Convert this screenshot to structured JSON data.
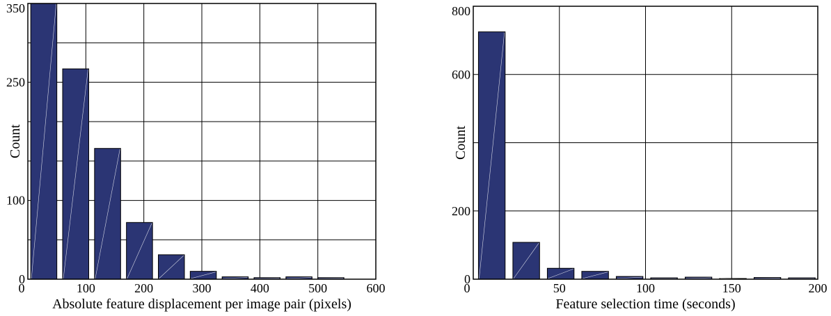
{
  "chart_data": [
    {
      "type": "bar",
      "title": "",
      "xlabel": "Absolute feature displacement per image pair (pixels)",
      "ylabel": "Count",
      "xlim": [
        0,
        600
      ],
      "ylim": [
        0,
        350
      ],
      "x_ticks": [
        {
          "value": 0,
          "label": "0"
        },
        {
          "value": 100,
          "label": "100"
        },
        {
          "value": 200,
          "label": "200"
        },
        {
          "value": 300,
          "label": "300"
        },
        {
          "value": 400,
          "label": "400"
        },
        {
          "value": 500,
          "label": "500"
        },
        {
          "value": 600,
          "label": "600"
        }
      ],
      "y_ticks": [
        {
          "value": 0,
          "label": "0"
        },
        {
          "value": 100,
          "label": "100"
        },
        {
          "value": 250,
          "label": "250"
        },
        {
          "value": 350,
          "label": "350"
        }
      ],
      "x_gridlines": [
        100,
        200,
        300,
        400,
        500
      ],
      "y_gridlines": [
        50,
        100,
        150,
        200,
        250,
        300
      ],
      "grid": true,
      "bar_color": "#2b3574",
      "bars": [
        {
          "x0": 5,
          "x1": 50,
          "value": 350
        },
        {
          "x0": 60,
          "x1": 105,
          "value": 267
        },
        {
          "x0": 115,
          "x1": 160,
          "value": 166
        },
        {
          "x0": 170,
          "x1": 215,
          "value": 72
        },
        {
          "x0": 225,
          "x1": 270,
          "value": 31
        },
        {
          "x0": 280,
          "x1": 325,
          "value": 10
        },
        {
          "x0": 335,
          "x1": 380,
          "value": 3
        },
        {
          "x0": 390,
          "x1": 435,
          "value": 2
        },
        {
          "x0": 445,
          "x1": 490,
          "value": 3
        },
        {
          "x0": 500,
          "x1": 545,
          "value": 2
        }
      ]
    },
    {
      "type": "bar",
      "title": "",
      "xlabel": "Feature selection time (seconds)",
      "ylabel": "Count",
      "xlim": [
        0,
        200
      ],
      "ylim": [
        0,
        800
      ],
      "x_ticks": [
        {
          "value": 0,
          "label": "0"
        },
        {
          "value": 50,
          "label": "50"
        },
        {
          "value": 100,
          "label": "100"
        },
        {
          "value": 150,
          "label": "150"
        },
        {
          "value": 200,
          "label": "200"
        }
      ],
      "y_ticks": [
        {
          "value": 0,
          "label": "0"
        },
        {
          "value": 200,
          "label": "200"
        },
        {
          "value": 600,
          "label": "600"
        },
        {
          "value": 800,
          "label": "800"
        }
      ],
      "x_gridlines": [
        50,
        100,
        150
      ],
      "y_gridlines": [
        200,
        400,
        600
      ],
      "grid": true,
      "bar_color": "#2b3574",
      "bars": [
        {
          "x0": 3,
          "x1": 18.5,
          "value": 725
        },
        {
          "x0": 23,
          "x1": 38.5,
          "value": 108
        },
        {
          "x0": 43,
          "x1": 58.5,
          "value": 32
        },
        {
          "x0": 63,
          "x1": 78.5,
          "value": 23
        },
        {
          "x0": 83,
          "x1": 98.5,
          "value": 8
        },
        {
          "x0": 103,
          "x1": 118.5,
          "value": 4
        },
        {
          "x0": 123,
          "x1": 138.5,
          "value": 6
        },
        {
          "x0": 143,
          "x1": 158.5,
          "value": 2
        },
        {
          "x0": 163,
          "x1": 178.5,
          "value": 5
        },
        {
          "x0": 183,
          "x1": 198.5,
          "value": 4
        }
      ]
    }
  ]
}
